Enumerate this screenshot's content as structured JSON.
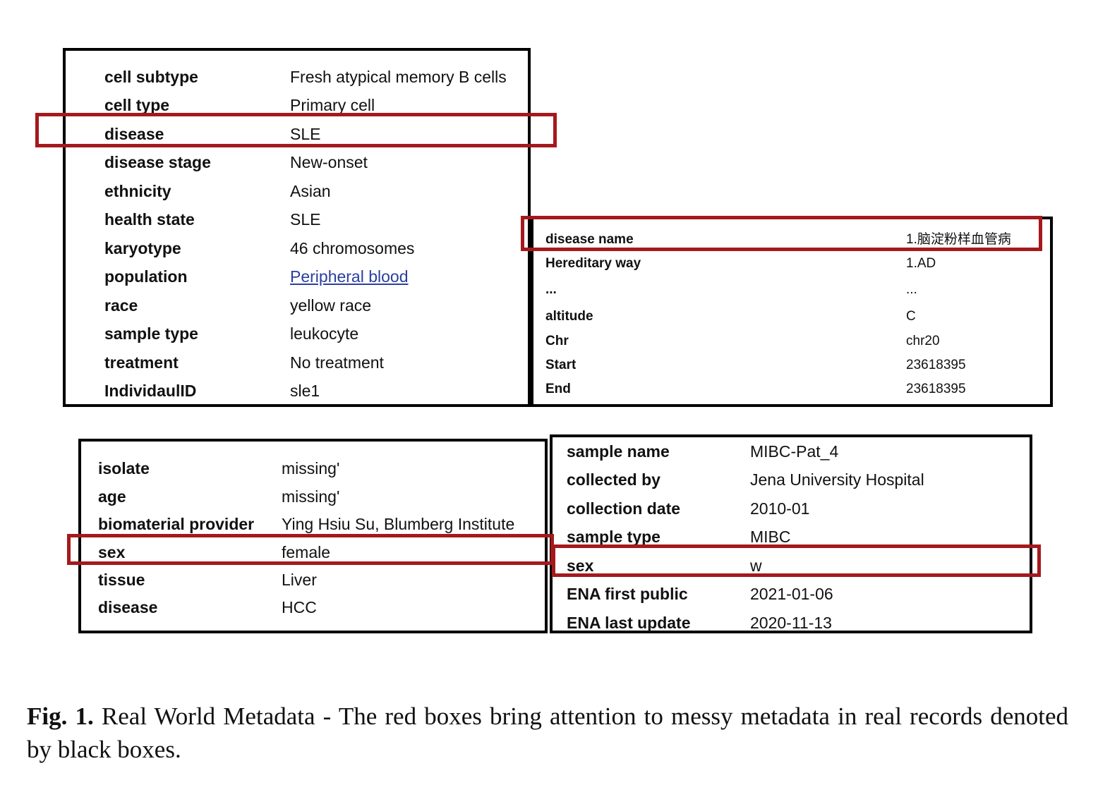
{
  "records": [
    {
      "rows": [
        {
          "key": "cell subtype",
          "value": "Fresh atypical memory B cells"
        },
        {
          "key": "cell type",
          "value": "Primary cell"
        },
        {
          "key": "disease",
          "value": "SLE"
        },
        {
          "key": "disease stage",
          "value": "New-onset"
        },
        {
          "key": "ethnicity",
          "value": "Asian"
        },
        {
          "key": "health state",
          "value": "SLE"
        },
        {
          "key": "karyotype",
          "value": "46 chromosomes"
        },
        {
          "key": "population",
          "value": "Peripheral blood"
        },
        {
          "key": "race",
          "value": "yellow race"
        },
        {
          "key": "sample type",
          "value": "leukocyte"
        },
        {
          "key": "treatment",
          "value": "No treatment"
        },
        {
          "key": "IndividaulID",
          "value": "sle1"
        }
      ]
    },
    {
      "rows": [
        {
          "key": "disease name",
          "value": "1.脑淀粉样血管病"
        },
        {
          "key": "Hereditary way",
          "value": "1.AD"
        },
        {
          "key": "...",
          "value": "..."
        },
        {
          "key": "altitude",
          "value": "C"
        },
        {
          "key": "Chr",
          "value": "chr20"
        },
        {
          "key": "Start",
          "value": "23618395"
        },
        {
          "key": "End",
          "value": "23618395"
        }
      ]
    },
    {
      "rows": [
        {
          "key": "isolate",
          "value": "missing'"
        },
        {
          "key": "age",
          "value": "missing'"
        },
        {
          "key": "biomaterial provider",
          "value": "Ying Hsiu Su, Blumberg Institute"
        },
        {
          "key": "sex",
          "value": "female"
        },
        {
          "key": "tissue",
          "value": "Liver"
        },
        {
          "key": "disease",
          "value": "HCC"
        }
      ]
    },
    {
      "rows": [
        {
          "key": "sample name",
          "value": "MIBC-Pat_4"
        },
        {
          "key": "collected by",
          "value": "Jena University Hospital"
        },
        {
          "key": "collection date",
          "value": "2010-01"
        },
        {
          "key": "sample type",
          "value": "MIBC"
        },
        {
          "key": "sex",
          "value": "w"
        },
        {
          "key": "ENA first public",
          "value": "2021-01-06"
        },
        {
          "key": "ENA last update",
          "value": "2020-11-13"
        }
      ]
    }
  ],
  "colors": {
    "record_border": "#000000",
    "highlight": "#a5191c",
    "link": "#2a3ea0"
  },
  "caption": {
    "label": "Fig. 1.",
    "text": "Real World Metadata - The red boxes bring attention to messy metadata in real records denoted by black boxes."
  }
}
